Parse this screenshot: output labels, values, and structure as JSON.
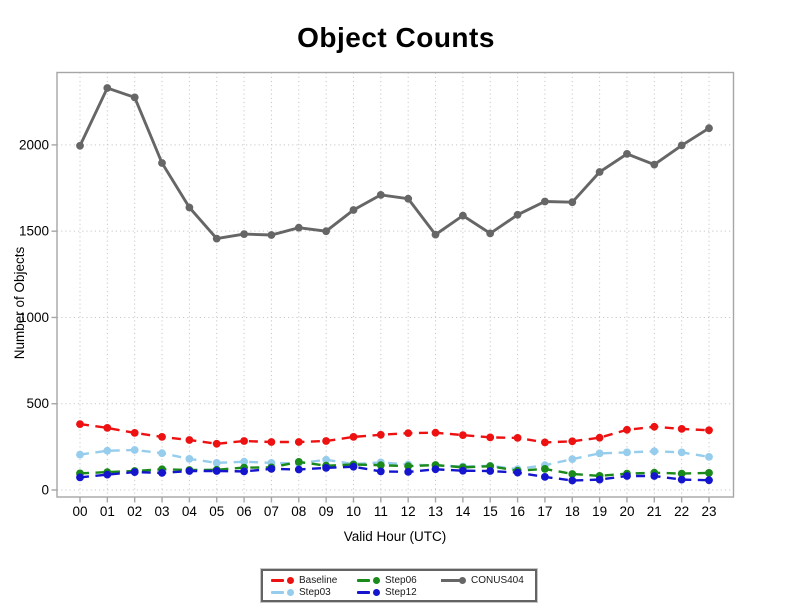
{
  "chart_data": {
    "type": "line",
    "title": "Object Counts",
    "xlabel": "Valid Hour (UTC)",
    "ylabel": "Number of Objects",
    "categories": [
      "00",
      "01",
      "02",
      "03",
      "04",
      "05",
      "06",
      "07",
      "08",
      "09",
      "10",
      "11",
      "12",
      "13",
      "14",
      "15",
      "16",
      "17",
      "18",
      "19",
      "20",
      "21",
      "22",
      "23"
    ],
    "yticks": [
      0,
      500,
      1000,
      1500,
      2000
    ],
    "ylim": [
      -40,
      2420
    ],
    "grid": "dotted",
    "legend_position": "bottom",
    "series": [
      {
        "name": "Baseline",
        "color": "#ee1111",
        "style": "dashed",
        "values": [
          382,
          360,
          331,
          308,
          290,
          268,
          284,
          278,
          278,
          284,
          308,
          320,
          330,
          332,
          318,
          305,
          302,
          276,
          282,
          303,
          349,
          366,
          354,
          346
        ]
      },
      {
        "name": "Step03",
        "color": "#96cdec",
        "style": "dashed",
        "values": [
          205,
          227,
          232,
          213,
          180,
          157,
          164,
          157,
          155,
          175,
          150,
          160,
          148,
          142,
          136,
          140,
          121,
          144,
          179,
          212,
          218,
          224,
          218,
          192
        ]
      },
      {
        "name": "Step06",
        "color": "#1a8a1a",
        "style": "dashed",
        "values": [
          96,
          104,
          110,
          120,
          116,
          117,
          130,
          131,
          163,
          141,
          148,
          144,
          138,
          145,
          131,
          138,
          111,
          122,
          93,
          82,
          95,
          100,
          95,
          99
        ]
      },
      {
        "name": "Step12",
        "color": "#1515cd",
        "style": "dashed",
        "values": [
          73,
          89,
          104,
          99,
          110,
          110,
          108,
          122,
          119,
          128,
          135,
          108,
          105,
          120,
          112,
          110,
          101,
          76,
          55,
          60,
          81,
          81,
          60,
          57
        ]
      },
      {
        "name": "CONUS404",
        "color": "#666666",
        "style": "solid",
        "values": [
          1995,
          2330,
          2275,
          1895,
          1637,
          1457,
          1483,
          1478,
          1520,
          1500,
          1623,
          1710,
          1688,
          1480,
          1590,
          1487,
          1595,
          1672,
          1668,
          1843,
          1948,
          1886,
          1997,
          2097
        ]
      }
    ]
  },
  "frame": {
    "grid_color": "#c9c9c9",
    "box_color": "#a6a6a6",
    "text_color": "#000000"
  }
}
